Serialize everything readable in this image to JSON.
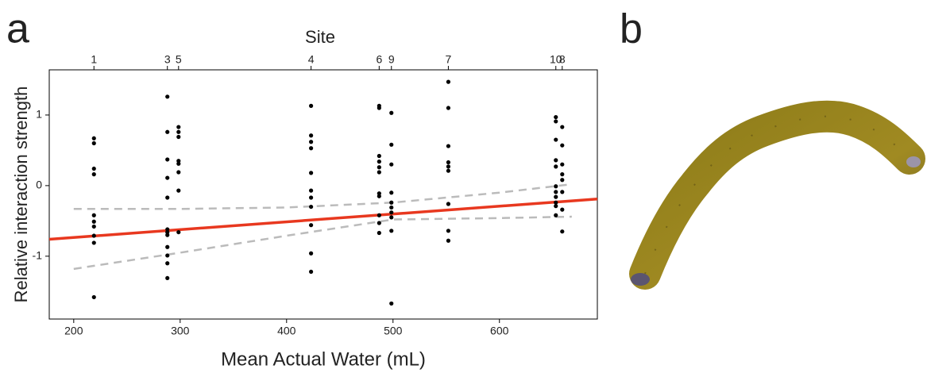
{
  "chart_data": {
    "type": "scatter",
    "panel_label": "a",
    "x2label": "Site",
    "xlabel": "Mean Actual Water (mL)",
    "ylabel": "Relative interaction strength",
    "xlim": [
      177,
      692
    ],
    "ylim": [
      -1.89,
      1.64
    ],
    "xticks": [
      200,
      300,
      400,
      500,
      600
    ],
    "yticks": [
      -1,
      0,
      1
    ],
    "x2ticks": [
      {
        "value": 219,
        "label": "1"
      },
      {
        "value": 288,
        "label": "3"
      },
      {
        "value": 298.5,
        "label": "5"
      },
      {
        "value": 423,
        "label": "4"
      },
      {
        "value": 487,
        "label": "6"
      },
      {
        "value": 498.5,
        "label": "9"
      },
      {
        "value": 552,
        "label": "7"
      },
      {
        "value": 653,
        "label": "10"
      },
      {
        "value": 659,
        "label": "8"
      }
    ],
    "series": [
      {
        "type": "scatter",
        "color": "#000000",
        "x": [
          219,
          219,
          219,
          219,
          219,
          219,
          219,
          219,
          219,
          219,
          288,
          288,
          288,
          288,
          288,
          288,
          288,
          288,
          288,
          288,
          288,
          288,
          298.5,
          298.5,
          298.5,
          298.5,
          298.5,
          298.5,
          298.5,
          298.5,
          423,
          423,
          423,
          423,
          423,
          423,
          423,
          423,
          423,
          423,
          423,
          487,
          487,
          487,
          487,
          487,
          487,
          487,
          487,
          487,
          487,
          487,
          498.5,
          498.5,
          498.5,
          498.5,
          498.5,
          498.5,
          498.5,
          498.5,
          498.5,
          498.5,
          552,
          552,
          552,
          552,
          552,
          552,
          552,
          552,
          552,
          653,
          653,
          653,
          653,
          653,
          653,
          653,
          653,
          653,
          653,
          653,
          659,
          659,
          659,
          659,
          659,
          659,
          659,
          659
        ],
        "values": [
          0.67,
          0.6,
          0.24,
          0.16,
          -0.42,
          -0.51,
          -0.58,
          -0.71,
          -0.81,
          -1.58,
          1.26,
          0.76,
          0.37,
          0.11,
          -0.17,
          -0.62,
          -0.66,
          -0.7,
          -0.87,
          -0.99,
          -1.1,
          -1.31,
          0.83,
          0.76,
          0.69,
          0.35,
          0.31,
          0.19,
          -0.07,
          -0.66,
          1.13,
          0.71,
          0.62,
          0.53,
          0.18,
          -0.07,
          -0.17,
          -0.3,
          -0.56,
          -0.96,
          -1.22,
          1.13,
          1.1,
          0.42,
          0.34,
          0.26,
          0.19,
          -0.11,
          -0.15,
          -0.42,
          -0.53,
          -0.67,
          1.03,
          0.58,
          0.3,
          -0.1,
          -0.24,
          -0.31,
          -0.38,
          -0.45,
          -0.64,
          -1.67,
          1.47,
          1.1,
          0.56,
          0.33,
          0.27,
          0.21,
          -0.26,
          -0.64,
          -0.78,
          0.97,
          0.91,
          0.65,
          0.36,
          0.27,
          -0.01,
          -0.09,
          -0.16,
          -0.24,
          -0.29,
          -0.42,
          0.83,
          0.57,
          0.3,
          0.16,
          0.08,
          -0.09,
          -0.34,
          -0.65
        ]
      },
      {
        "type": "line",
        "color": "#e8381f",
        "dash": false,
        "x": [
          177,
          692
        ],
        "values": [
          -0.76,
          -0.19
        ]
      },
      {
        "type": "line",
        "color": "#bbbbbb",
        "dash": true,
        "x": [
          200,
          300,
          400,
          500,
          600,
          668
        ],
        "values": [
          -0.33,
          -0.33,
          -0.31,
          -0.24,
          -0.1,
          0.02
        ]
      },
      {
        "type": "line",
        "color": "#bbbbbb",
        "dash": true,
        "x": [
          200,
          300,
          400,
          500,
          600,
          668
        ],
        "values": [
          -1.18,
          -0.95,
          -0.71,
          -0.48,
          -0.46,
          -0.44
        ]
      }
    ]
  },
  "panel_b": {
    "label": "b"
  }
}
